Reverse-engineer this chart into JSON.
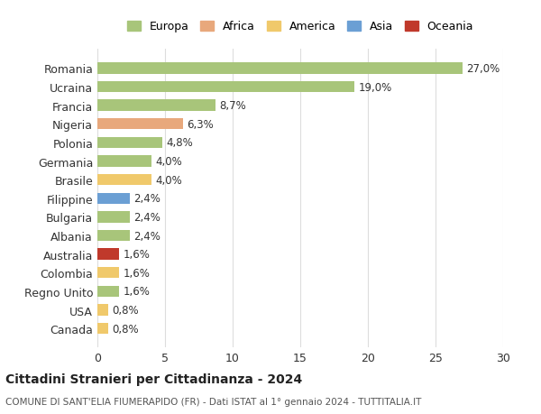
{
  "countries": [
    "Romania",
    "Ucraina",
    "Francia",
    "Nigeria",
    "Polonia",
    "Germania",
    "Brasile",
    "Filippine",
    "Bulgaria",
    "Albania",
    "Australia",
    "Colombia",
    "Regno Unito",
    "USA",
    "Canada"
  ],
  "values": [
    27.0,
    19.0,
    8.7,
    6.3,
    4.8,
    4.0,
    4.0,
    2.4,
    2.4,
    2.4,
    1.6,
    1.6,
    1.6,
    0.8,
    0.8
  ],
  "labels": [
    "27,0%",
    "19,0%",
    "8,7%",
    "6,3%",
    "4,8%",
    "4,0%",
    "4,0%",
    "2,4%",
    "2,4%",
    "2,4%",
    "1,6%",
    "1,6%",
    "1,6%",
    "0,8%",
    "0,8%"
  ],
  "colors": [
    "#a8c57a",
    "#a8c57a",
    "#a8c57a",
    "#e8a87c",
    "#a8c57a",
    "#a8c57a",
    "#f0c96b",
    "#6b9fd4",
    "#a8c57a",
    "#a8c57a",
    "#c0392b",
    "#f0c96b",
    "#a8c57a",
    "#f0c96b",
    "#f0c96b"
  ],
  "continent_labels": [
    "Europa",
    "Africa",
    "America",
    "Asia",
    "Oceania"
  ],
  "continent_colors": [
    "#a8c57a",
    "#e8a87c",
    "#f0c96b",
    "#6b9fd4",
    "#c0392b"
  ],
  "title": "Cittadini Stranieri per Cittadinanza - 2024",
  "subtitle": "COMUNE DI SANT'ELIA FIUMERAPIDO (FR) - Dati ISTAT al 1° gennaio 2024 - TUTTITALIA.IT",
  "xlim": [
    0,
    30
  ],
  "xticks": [
    0,
    5,
    10,
    15,
    20,
    25,
    30
  ],
  "background_color": "#ffffff",
  "grid_color": "#dddddd"
}
